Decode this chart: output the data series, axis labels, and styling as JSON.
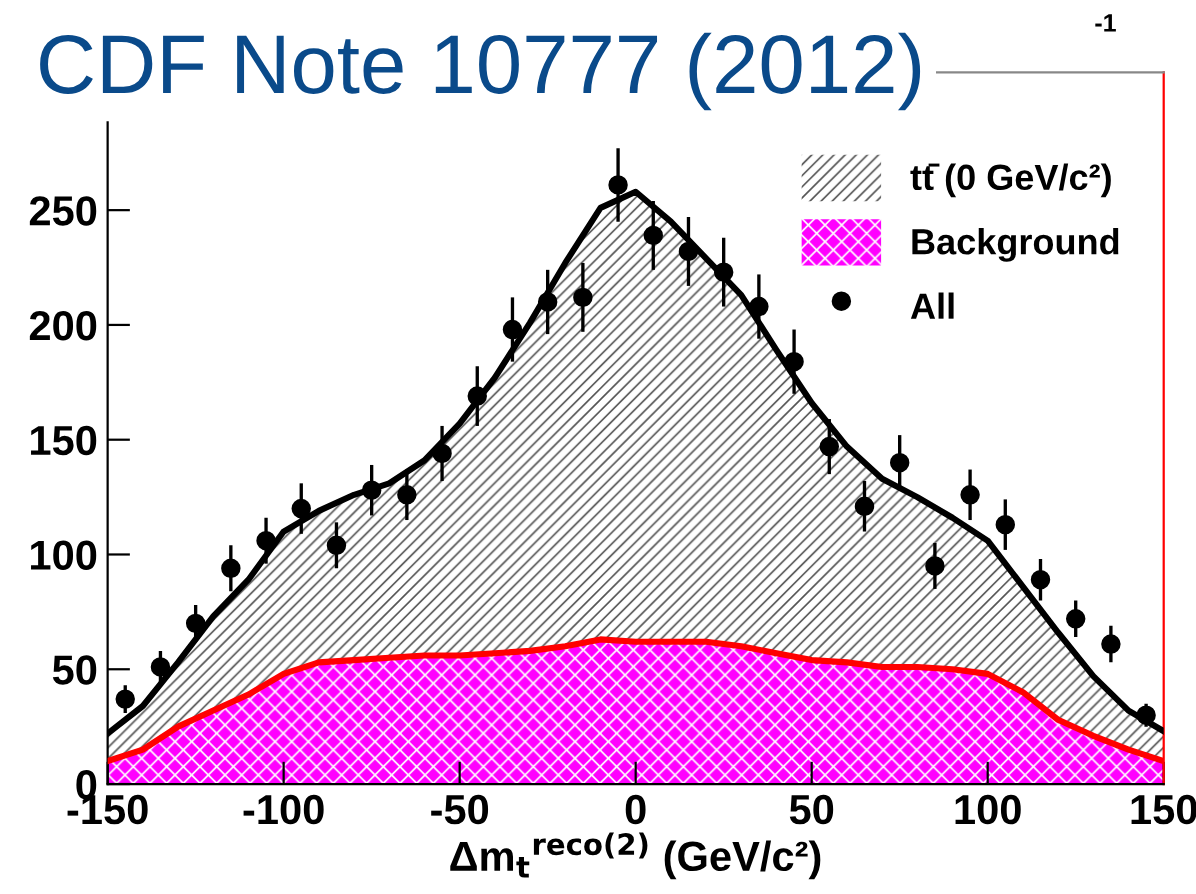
{
  "chart_data": {
    "type": "area",
    "stacked": true,
    "title": "CDF Note 10777 (2012)",
    "xlabel": "Δm$_{t}$$^{reco(2)}$ (GeV/c²)",
    "annotations": [
      "-1"
    ],
    "x": [
      -150,
      -140,
      -130,
      -120,
      -110,
      -100,
      -90,
      -80,
      -70,
      -60,
      -50,
      -40,
      -30,
      -20,
      -10,
      0,
      10,
      20,
      30,
      40,
      50,
      60,
      70,
      80,
      90,
      100,
      110,
      120,
      130,
      140,
      150
    ],
    "series": [
      {
        "name": "Background",
        "color": "#ff00ff",
        "values": [
          10,
          15,
          25,
          32,
          39,
          48,
          53,
          54,
          55,
          56,
          56,
          57,
          58,
          60,
          63,
          62,
          62,
          62,
          60,
          57,
          54,
          53,
          51,
          51,
          50,
          48,
          40,
          28,
          21,
          15,
          10
        ]
      },
      {
        "name": "tt̄ (0 GeV/c²)",
        "color": "#000000",
        "values": [
          12,
          19,
          28,
          41,
          50,
          62,
          66,
          72,
          76,
          85,
          101,
          120,
          143,
          167,
          188,
          196,
          183,
          167,
          153,
          132,
          112,
          94,
          82,
          74,
          66,
          58,
          46,
          38,
          26,
          17,
          13
        ]
      },
      {
        "name": "All",
        "type": "scatter",
        "color": "#000000",
        "marker": "circle",
        "x": [
          -145,
          -135,
          -125,
          -115,
          -105,
          -95,
          -85,
          -75,
          -65,
          -55,
          -45,
          -35,
          -25,
          -15,
          -5,
          5,
          15,
          25,
          35,
          45,
          55,
          65,
          75,
          85,
          95,
          105,
          115,
          125,
          135,
          145
        ],
        "values": [
          37,
          51,
          70,
          94,
          106,
          120,
          104,
          128,
          126,
          144,
          169,
          198,
          210,
          212,
          261,
          239,
          232,
          223,
          208,
          184,
          147,
          121,
          140,
          95,
          126,
          113,
          89,
          72,
          61,
          30
        ],
        "errors": [
          6,
          7,
          8,
          10,
          10,
          11,
          10,
          11,
          11,
          12,
          13,
          14,
          14,
          15,
          16,
          15,
          15,
          15,
          14,
          14,
          12,
          11,
          12,
          10,
          11,
          11,
          9,
          8,
          8,
          5
        ]
      }
    ],
    "xlim": [
      -150,
      150
    ],
    "xticks": [
      -150,
      -100,
      -50,
      0,
      50,
      100,
      150
    ],
    "ylim": [
      0,
      310
    ],
    "yticks": [
      0,
      50,
      100,
      150,
      200,
      250
    ],
    "legend": "top right",
    "grid": false
  }
}
